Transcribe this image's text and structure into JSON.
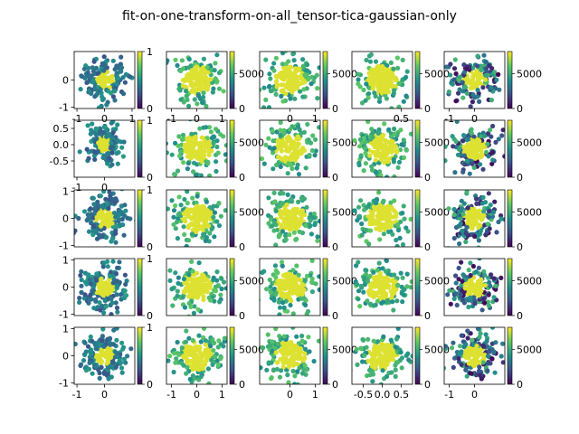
{
  "figure": {
    "title": "fit-on-one-transform-on-all_tensor-tica-gaussian-only"
  },
  "colormap": {
    "name": "viridis",
    "stops": [
      "#440154",
      "#3b528b",
      "#21918c",
      "#5ec962",
      "#fde725"
    ]
  },
  "chart_data": [
    {
      "type": "scatter",
      "panel": "r1c1",
      "xlim": [
        -1.1,
        1.1
      ],
      "ylim": [
        -1.05,
        1.05
      ],
      "xticks": [
        "-1",
        "0",
        "1"
      ],
      "yticks": [
        "-1",
        "0"
      ],
      "colorbar": {
        "ticks": [
          "0",
          "1"
        ]
      }
    },
    {
      "type": "scatter",
      "panel": "r1c2",
      "xlim": [
        -1.2,
        1.2
      ],
      "ylim": [
        -1.2,
        1.2
      ],
      "xticks": [
        "-1",
        "0",
        "1"
      ],
      "yticks": [],
      "colorbar": {
        "ticks": [
          "0",
          "5000"
        ]
      }
    },
    {
      "type": "scatter",
      "panel": "r1c3",
      "xlim": [
        -1.2,
        1.2
      ],
      "ylim": [
        -1.2,
        1.2
      ],
      "xticks": [
        "0",
        "1"
      ],
      "yticks": [],
      "colorbar": {
        "ticks": [
          "0",
          "5000"
        ]
      }
    },
    {
      "type": "scatter",
      "panel": "r1c4",
      "xlim": [
        -0.8,
        0.8
      ],
      "ylim": [
        -0.8,
        0.8
      ],
      "xticks": [
        "0.5"
      ],
      "yticks": [],
      "colorbar": {
        "ticks": [
          "0",
          "5000"
        ]
      }
    },
    {
      "type": "scatter",
      "panel": "r1c5",
      "xlim": [
        -1.2,
        1.2
      ],
      "ylim": [
        -1.2,
        1.2
      ],
      "xticks": [
        "-1",
        "0"
      ],
      "yticks": [],
      "colorbar": {
        "ticks": [
          "0",
          "5000"
        ]
      }
    },
    {
      "type": "scatter",
      "panel": "r2c1",
      "xlim": [
        -1.1,
        1.1
      ],
      "ylim": [
        -1.0,
        0.75
      ],
      "xticks": [
        "-1",
        "0"
      ],
      "yticks": [
        "0.5",
        "0.0",
        "-0.5"
      ],
      "colorbar": {
        "ticks": [
          "0",
          "1"
        ]
      }
    },
    {
      "type": "scatter",
      "panel": "r2c2",
      "xlim": [
        -1.2,
        1.2
      ],
      "ylim": [
        -1.2,
        1.2
      ],
      "xticks": [],
      "yticks": [],
      "colorbar": {
        "ticks": [
          "0",
          "5000"
        ]
      }
    },
    {
      "type": "scatter",
      "panel": "r2c3",
      "xlim": [
        -1.2,
        1.2
      ],
      "ylim": [
        -1.2,
        1.2
      ],
      "xticks": [],
      "yticks": [],
      "colorbar": {
        "ticks": [
          "0",
          "5000"
        ]
      }
    },
    {
      "type": "scatter",
      "panel": "r2c4",
      "xlim": [
        -0.8,
        0.8
      ],
      "ylim": [
        -0.8,
        0.8
      ],
      "xticks": [],
      "yticks": [],
      "colorbar": {
        "ticks": [
          "0",
          "5000"
        ]
      }
    },
    {
      "type": "scatter",
      "panel": "r2c5",
      "xlim": [
        -1.2,
        1.2
      ],
      "ylim": [
        -1.2,
        1.2
      ],
      "xticks": [],
      "yticks": [],
      "colorbar": {
        "ticks": [
          "0",
          "5000"
        ]
      }
    },
    {
      "type": "scatter",
      "panel": "r3c1",
      "xlim": [
        -1.1,
        1.1
      ],
      "ylim": [
        -1.05,
        1.05
      ],
      "xticks": [],
      "yticks": [
        "1",
        "0",
        "-1"
      ],
      "colorbar": {
        "ticks": [
          "0",
          "1"
        ]
      }
    },
    {
      "type": "scatter",
      "panel": "r3c2",
      "xlim": [
        -1.2,
        1.2
      ],
      "ylim": [
        -1.2,
        1.2
      ],
      "xticks": [],
      "yticks": [],
      "colorbar": {
        "ticks": [
          "0",
          "5000"
        ]
      }
    },
    {
      "type": "scatter",
      "panel": "r3c3",
      "xlim": [
        -1.2,
        1.2
      ],
      "ylim": [
        -1.2,
        1.2
      ],
      "xticks": [],
      "yticks": [],
      "colorbar": {
        "ticks": [
          "0",
          "5000"
        ]
      }
    },
    {
      "type": "scatter",
      "panel": "r3c4",
      "xlim": [
        -0.8,
        0.8
      ],
      "ylim": [
        -0.8,
        0.8
      ],
      "xticks": [],
      "yticks": [],
      "colorbar": {
        "ticks": [
          "0",
          "5000"
        ]
      }
    },
    {
      "type": "scatter",
      "panel": "r3c5",
      "xlim": [
        -1.2,
        1.2
      ],
      "ylim": [
        -1.2,
        1.2
      ],
      "xticks": [],
      "yticks": [],
      "colorbar": {
        "ticks": [
          "0",
          "5000"
        ]
      }
    },
    {
      "type": "scatter",
      "panel": "r4c1",
      "xlim": [
        -1.1,
        1.1
      ],
      "ylim": [
        -1.05,
        1.05
      ],
      "xticks": [],
      "yticks": [
        "1",
        "0",
        "-1"
      ],
      "colorbar": {
        "ticks": [
          "0",
          "1"
        ]
      }
    },
    {
      "type": "scatter",
      "panel": "r4c2",
      "xlim": [
        -1.2,
        1.2
      ],
      "ylim": [
        -1.2,
        1.2
      ],
      "xticks": [],
      "yticks": [],
      "colorbar": {
        "ticks": [
          "0",
          "5000"
        ]
      }
    },
    {
      "type": "scatter",
      "panel": "r4c3",
      "xlim": [
        -1.2,
        1.2
      ],
      "ylim": [
        -1.2,
        1.2
      ],
      "xticks": [],
      "yticks": [],
      "colorbar": {
        "ticks": [
          "0",
          "5000"
        ]
      }
    },
    {
      "type": "scatter",
      "panel": "r4c4",
      "xlim": [
        -0.8,
        0.8
      ],
      "ylim": [
        -0.8,
        0.8
      ],
      "xticks": [],
      "yticks": [],
      "colorbar": {
        "ticks": [
          "0",
          "5000"
        ]
      }
    },
    {
      "type": "scatter",
      "panel": "r4c5",
      "xlim": [
        -1.2,
        1.2
      ],
      "ylim": [
        -1.2,
        1.2
      ],
      "xticks": [],
      "yticks": [],
      "colorbar": {
        "ticks": [
          "0",
          "5000"
        ]
      }
    },
    {
      "type": "scatter",
      "panel": "r5c1",
      "xlim": [
        -1.1,
        1.1
      ],
      "ylim": [
        -1.05,
        1.05
      ],
      "xticks": [
        "-1",
        "0"
      ],
      "yticks": [
        "1",
        "0",
        "-1"
      ],
      "colorbar": {
        "ticks": [
          "0",
          "1"
        ]
      }
    },
    {
      "type": "scatter",
      "panel": "r5c2",
      "xlim": [
        -1.2,
        1.2
      ],
      "ylim": [
        -1.2,
        1.2
      ],
      "xticks": [
        "-1",
        "0",
        "1"
      ],
      "yticks": [],
      "colorbar": {
        "ticks": [
          "0",
          "5000"
        ]
      }
    },
    {
      "type": "scatter",
      "panel": "r5c3",
      "xlim": [
        -1.2,
        1.2
      ],
      "ylim": [
        -1.2,
        1.2
      ],
      "xticks": [
        "0",
        "1"
      ],
      "yticks": [],
      "colorbar": {
        "ticks": [
          "0",
          "5000"
        ]
      }
    },
    {
      "type": "scatter",
      "panel": "r5c4",
      "xlim": [
        -0.8,
        0.8
      ],
      "ylim": [
        -0.8,
        0.8
      ],
      "xticks": [
        "-0.5",
        "0.0",
        "0.5"
      ],
      "yticks": [],
      "colorbar": {
        "ticks": [
          "0",
          "5000"
        ]
      }
    },
    {
      "type": "scatter",
      "panel": "r5c5",
      "xlim": [
        -1.2,
        1.2
      ],
      "ylim": [
        -1.2,
        1.2
      ],
      "xticks": [
        "-1",
        "0"
      ],
      "yticks": [],
      "colorbar": {
        "ticks": [
          "0",
          "5000"
        ]
      }
    }
  ]
}
